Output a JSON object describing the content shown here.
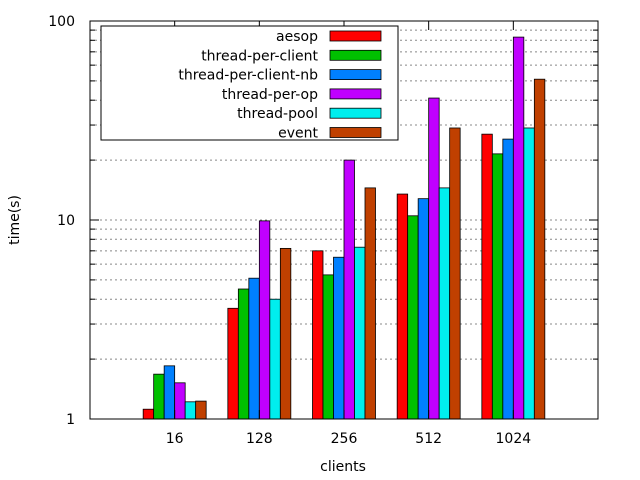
{
  "chart_data": {
    "type": "bar",
    "title": "",
    "xlabel": "clients",
    "ylabel": "time(s)",
    "yscale": "log",
    "ylim": [
      1,
      100
    ],
    "y_ticks": [
      {
        "value": 1,
        "label": "1"
      },
      {
        "value": 10,
        "label": "10"
      },
      {
        "value": 100,
        "label": "100"
      }
    ],
    "categories": [
      "16",
      "128",
      "256",
      "512",
      "1024"
    ],
    "grid": "horizontal dotted",
    "legend_position": "top-left",
    "series": [
      {
        "name": "aesop",
        "color": "#ff0000",
        "values": [
          1.12,
          3.6,
          7.0,
          13.5,
          27.0
        ]
      },
      {
        "name": "thread-per-client",
        "color": "#00c000",
        "values": [
          1.68,
          4.5,
          5.3,
          10.5,
          21.5
        ]
      },
      {
        "name": "thread-per-client-nb",
        "color": "#0080ff",
        "values": [
          1.85,
          5.1,
          6.5,
          12.8,
          25.5
        ]
      },
      {
        "name": "thread-per-op",
        "color": "#c000ff",
        "values": [
          1.52,
          9.9,
          20.0,
          41.0,
          83.0
        ]
      },
      {
        "name": "thread-pool",
        "color": "#00eeee",
        "values": [
          1.22,
          4.0,
          7.3,
          14.5,
          29.0
        ]
      },
      {
        "name": "event",
        "color": "#c04000",
        "values": [
          1.23,
          7.2,
          14.5,
          29.0,
          51.0
        ]
      }
    ]
  }
}
